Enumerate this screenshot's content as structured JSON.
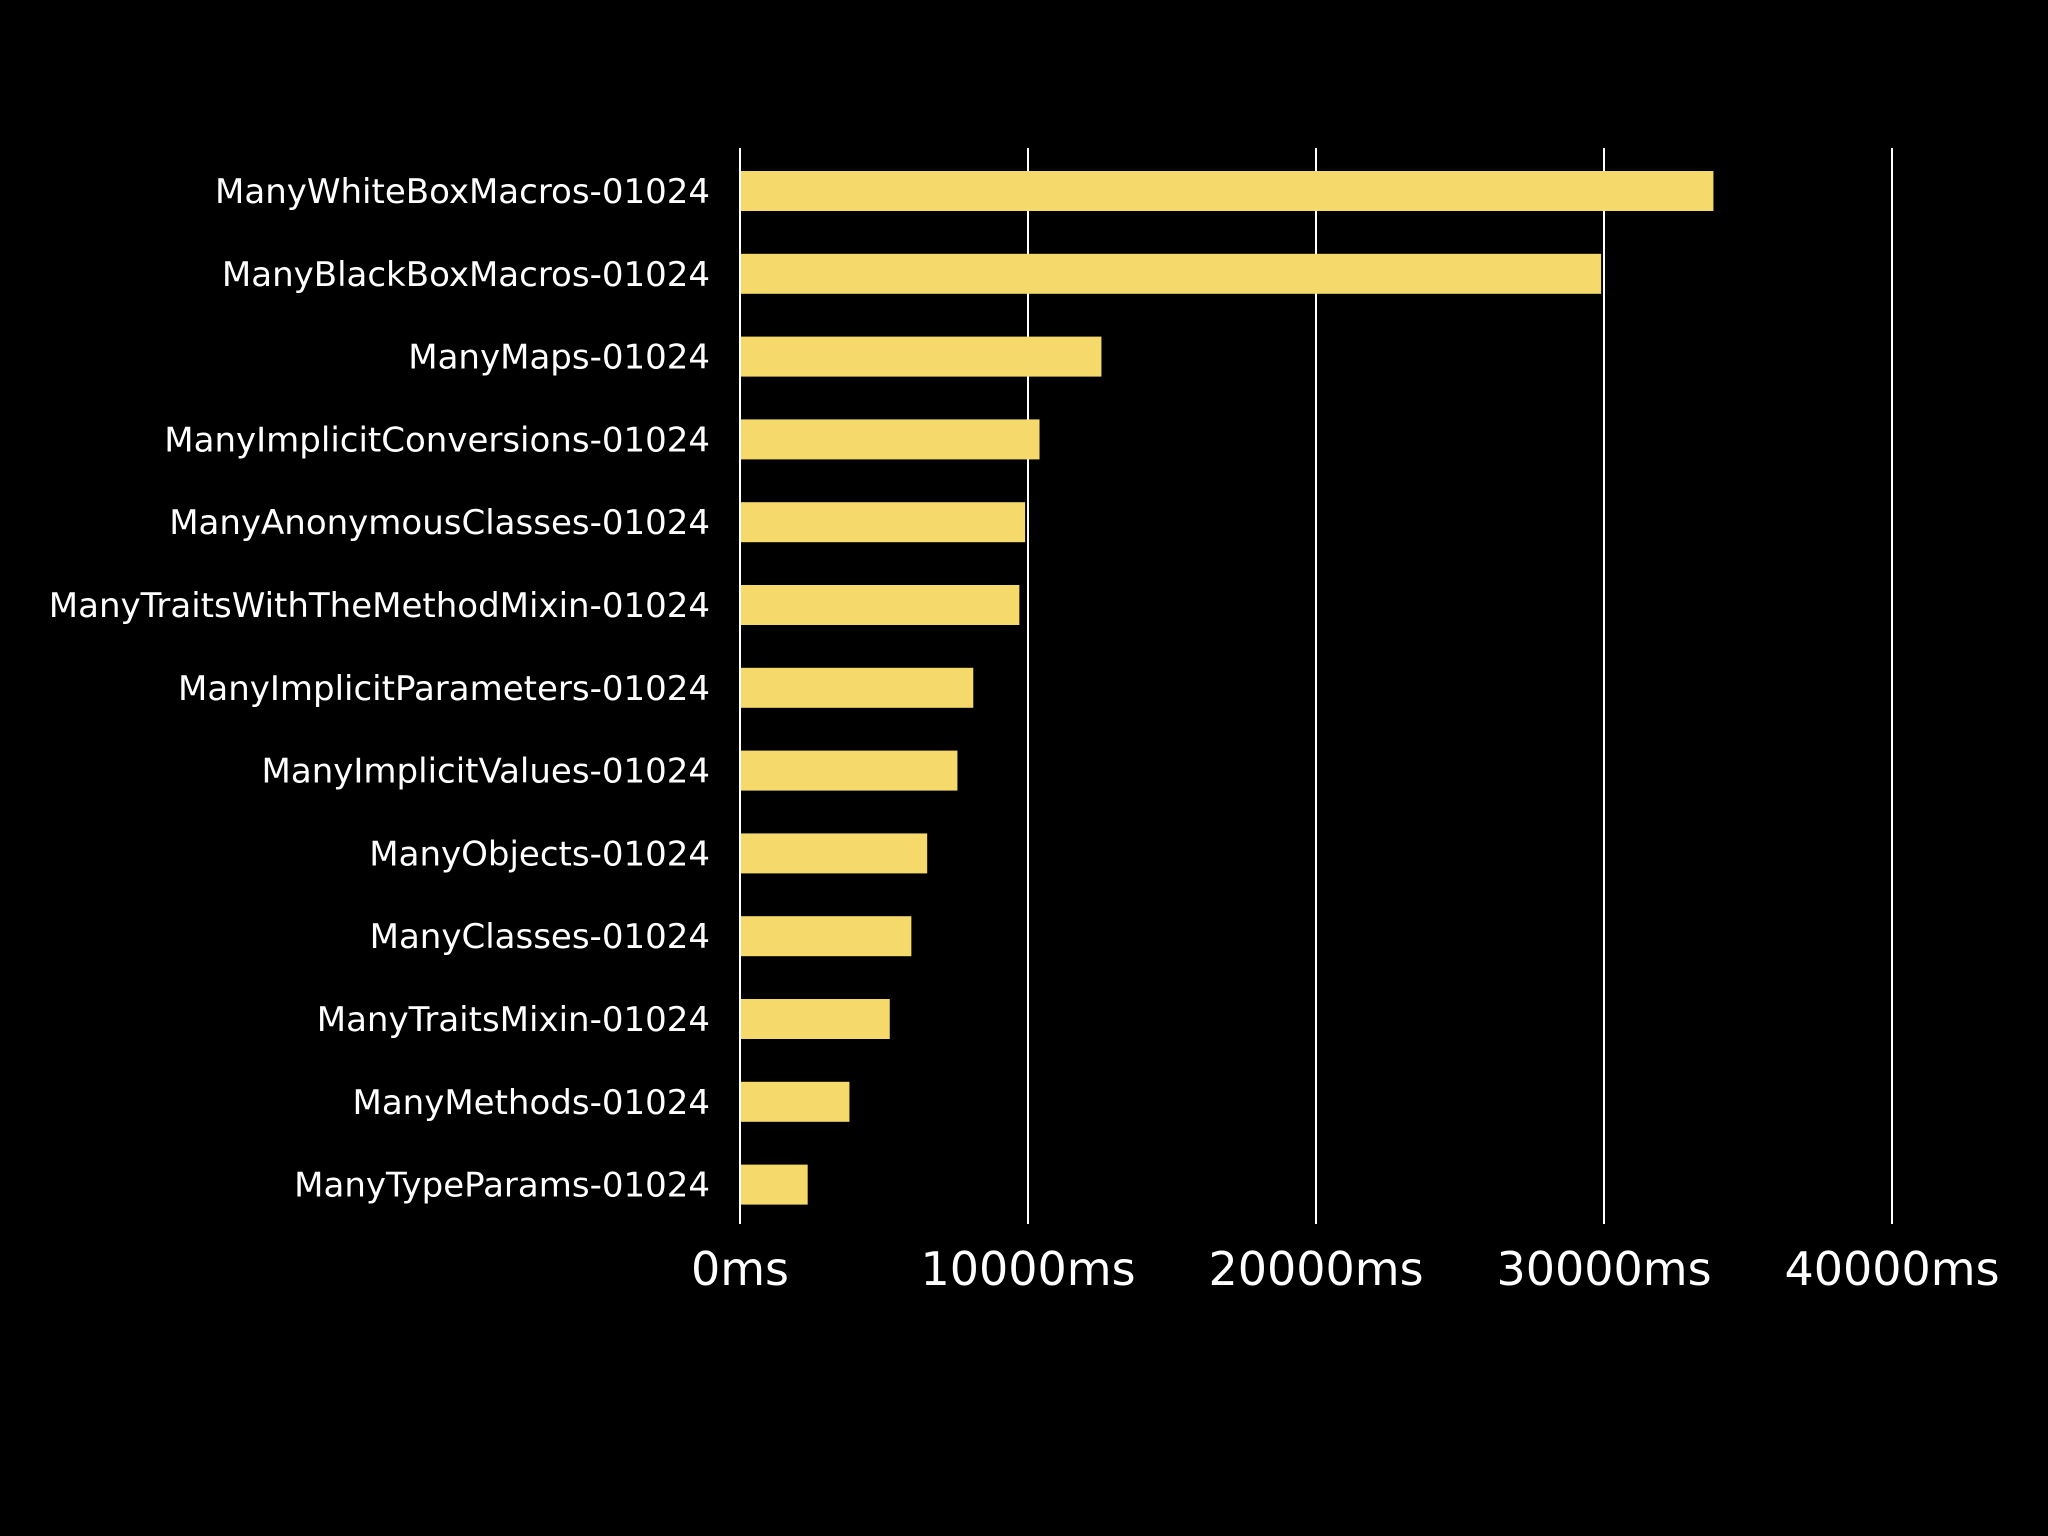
{
  "chart_data": {
    "type": "bar",
    "orientation": "horizontal",
    "categories": [
      "ManyWhiteBoxMacros-01024",
      "ManyBlackBoxMacros-01024",
      "ManyMaps-01024",
      "ManyImplicitConversions-01024",
      "ManyAnonymousClasses-01024",
      "ManyTraitsWithTheMethodMixin-01024",
      "ManyImplicitParameters-01024",
      "ManyImplicitValues-01024",
      "ManyObjects-01024",
      "ManyClasses-01024",
      "ManyTraitsMixin-01024",
      "ManyMethods-01024",
      "ManyTypeParams-01024"
    ],
    "values": [
      33800,
      29900,
      12550,
      10400,
      9900,
      9700,
      8100,
      7550,
      6500,
      5950,
      5200,
      3800,
      2350
    ],
    "title": "",
    "xlabel": "",
    "ylabel": "",
    "xlim": [
      0,
      40000
    ],
    "x_ticks": [
      0,
      10000,
      20000,
      30000,
      40000
    ],
    "x_tick_labels": [
      "0ms",
      "10000ms",
      "20000ms",
      "30000ms",
      "40000ms"
    ],
    "grid": "vertical",
    "legend": "none",
    "colors": {
      "background": "#000000",
      "bar": "#f5d96b",
      "gridline": "#ffffff",
      "text": "#ffffff"
    }
  }
}
